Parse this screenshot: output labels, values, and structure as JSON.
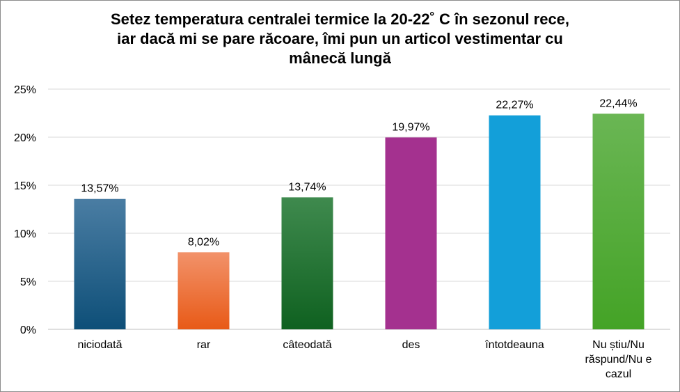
{
  "chart_data": {
    "type": "bar",
    "title_lines": [
      "Setez temperatura centralei termice la 20-22˚ C în sezonul rece,",
      "iar dacă mi se pare răcoare, îmi pun un articol vestimentar cu",
      "mânecă lungă"
    ],
    "categories": [
      [
        "niciodată"
      ],
      [
        "rar"
      ],
      [
        "câteodată"
      ],
      [
        "des"
      ],
      [
        "întotdeauna"
      ],
      [
        "Nu știu/Nu",
        "răspund/Nu e",
        "cazul"
      ]
    ],
    "values": [
      13.57,
      8.02,
      13.74,
      19.97,
      22.27,
      22.44
    ],
    "value_labels": [
      "13,57%",
      "8,02%",
      "13,74%",
      "19,97%",
      "22,27%",
      "22,44%"
    ],
    "ylim": [
      0,
      25
    ],
    "yticks": [
      0,
      5,
      10,
      15,
      20,
      25
    ],
    "ytick_labels": [
      "0%",
      "5%",
      "10%",
      "15%",
      "20%",
      "25%"
    ],
    "grid": true,
    "colors": [
      [
        "#4a7da3",
        "#0e4f78"
      ],
      [
        "#f2926a",
        "#e85a17"
      ],
      [
        "#3f8a4e",
        "#0f6120"
      ],
      [
        "#a4318f",
        "#a4318f"
      ],
      [
        "#139fd9",
        "#139fd9"
      ],
      [
        "#6ab654",
        "#44a326"
      ]
    ]
  }
}
